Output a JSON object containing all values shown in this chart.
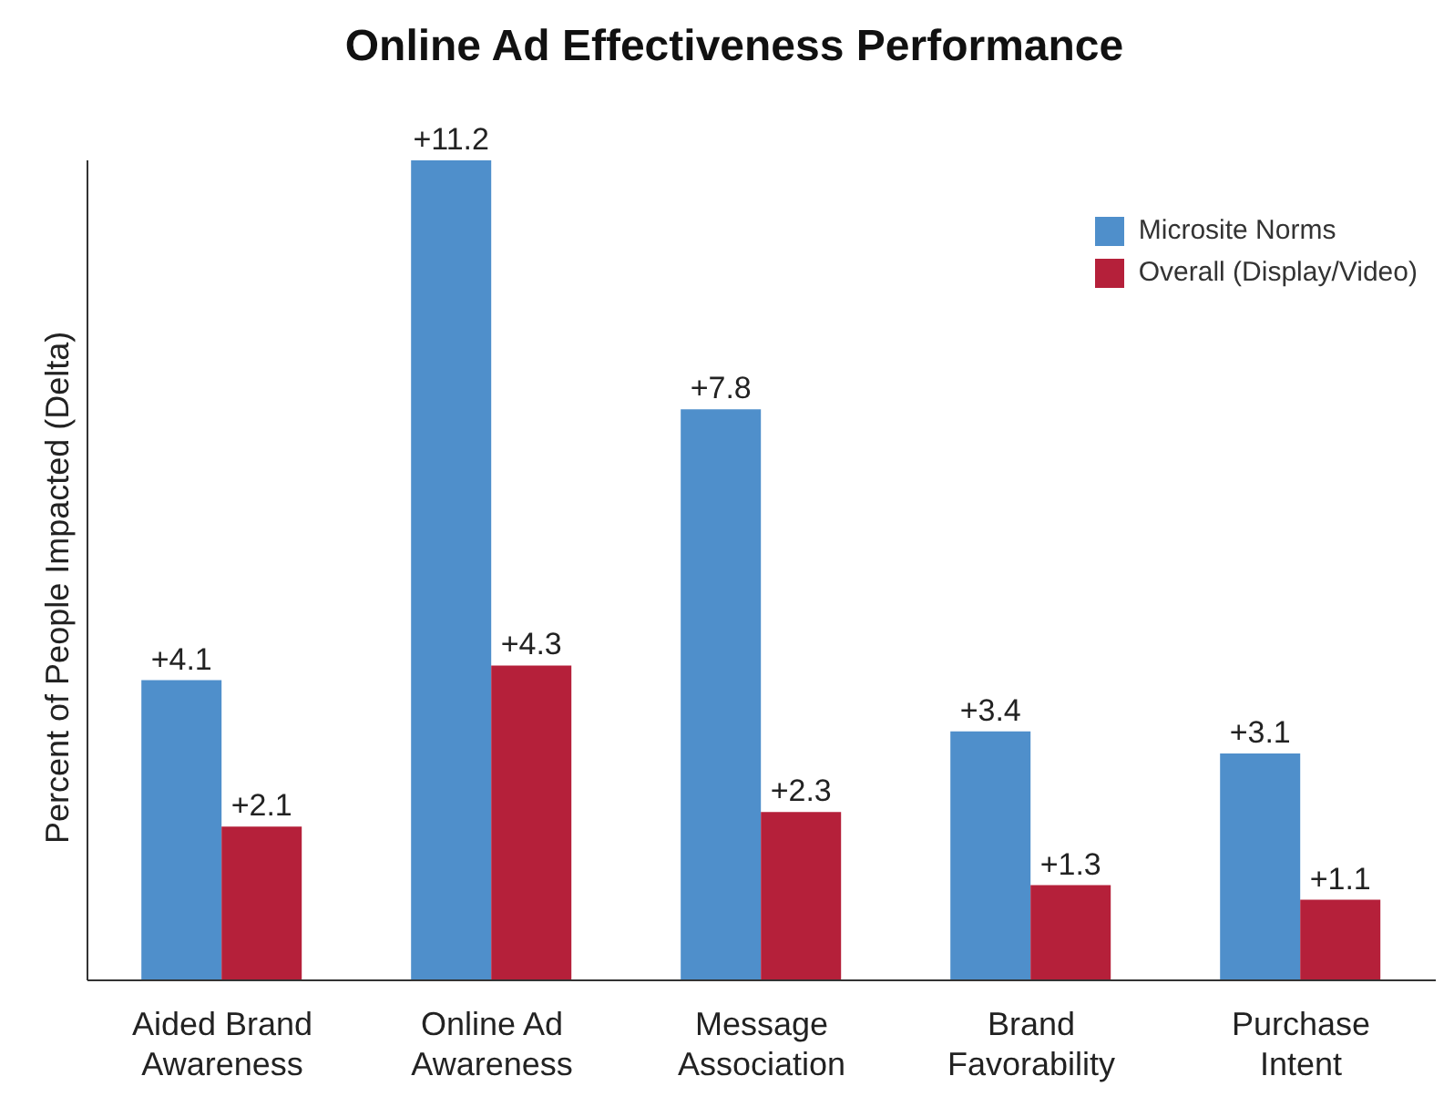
{
  "chart_data": {
    "type": "bar",
    "title": "Online Ad Effectiveness Performance",
    "ylabel": "Percent of People Impacted (Delta)",
    "categories": [
      "Aided Brand Awareness",
      "Online Ad Awareness",
      "Message Association",
      "Brand Favorability",
      "Purchase Intent"
    ],
    "series": [
      {
        "name": "Microsite Norms",
        "color": "#4f8fcb",
        "values": [
          4.1,
          11.2,
          7.8,
          3.4,
          3.1
        ],
        "value_labels": [
          "+4.1",
          "+11.2",
          "+7.8",
          "+3.4",
          "+3.1"
        ]
      },
      {
        "name": "Overall (Display/Video)",
        "color": "#b5203a",
        "values": [
          2.1,
          4.3,
          2.3,
          1.3,
          1.1
        ],
        "value_labels": [
          "+2.1",
          "+4.3",
          "+2.3",
          "+1.3",
          "+1.1"
        ]
      }
    ],
    "legend": "top right",
    "grid": false
  }
}
